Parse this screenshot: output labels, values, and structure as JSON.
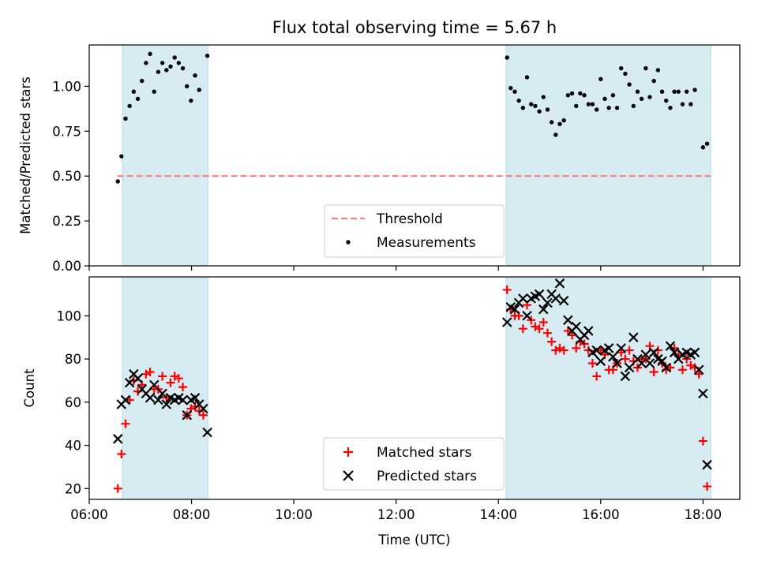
{
  "chart_data": [
    {
      "type": "scatter",
      "title": "Flux total observing time = 5.67 h",
      "xlabel": "",
      "ylabel": "Matched/Predicted stars",
      "ylim": [
        0,
        1.23
      ],
      "y_ticks": [
        "0.00",
        "0.25",
        "0.50",
        "0.75",
        "1.00"
      ],
      "y_tick_values": [
        0,
        0.25,
        0.5,
        0.75,
        1.0
      ],
      "x_unit": "hours UTC",
      "xlim": [
        6.0,
        18.72
      ],
      "shaded_intervals": [
        [
          6.65,
          8.32
        ],
        [
          14.15,
          18.15
        ]
      ],
      "shade_color": "#add8e6",
      "legend_position": "lower-center",
      "threshold": {
        "name": "Threshold",
        "value": 0.5,
        "x_range": [
          6.55,
          18.15
        ],
        "color": "#ff7777"
      },
      "series": [
        {
          "name": "Measurements",
          "marker": "dot",
          "color": "#000000",
          "points": [
            [
              6.56,
              0.47
            ],
            [
              6.63,
              0.61
            ],
            [
              6.71,
              0.82
            ],
            [
              6.79,
              0.89
            ],
            [
              6.87,
              0.97
            ],
            [
              6.95,
              0.93
            ],
            [
              7.03,
              1.03
            ],
            [
              7.11,
              1.13
            ],
            [
              7.19,
              1.18
            ],
            [
              7.27,
              0.97
            ],
            [
              7.35,
              1.08
            ],
            [
              7.43,
              1.13
            ],
            [
              7.51,
              1.09
            ],
            [
              7.59,
              1.11
            ],
            [
              7.67,
              1.16
            ],
            [
              7.75,
              1.13
            ],
            [
              7.83,
              1.1
            ],
            [
              7.91,
              1.0
            ],
            [
              7.99,
              0.92
            ],
            [
              8.07,
              1.06
            ],
            [
              8.15,
              0.98
            ],
            [
              8.31,
              1.17
            ],
            [
              14.17,
              1.16
            ],
            [
              14.24,
              0.99
            ],
            [
              14.32,
              0.97
            ],
            [
              14.4,
              0.92
            ],
            [
              14.48,
              0.88
            ],
            [
              14.56,
              1.05
            ],
            [
              14.64,
              0.9
            ],
            [
              14.72,
              0.89
            ],
            [
              14.8,
              0.86
            ],
            [
              14.88,
              0.94
            ],
            [
              14.96,
              0.87
            ],
            [
              15.04,
              0.8
            ],
            [
              15.12,
              0.73
            ],
            [
              15.2,
              0.79
            ],
            [
              15.28,
              0.81
            ],
            [
              15.36,
              0.95
            ],
            [
              15.44,
              0.96
            ],
            [
              15.52,
              0.89
            ],
            [
              15.6,
              0.96
            ],
            [
              15.68,
              0.95
            ],
            [
              15.76,
              0.9
            ],
            [
              15.84,
              0.9
            ],
            [
              15.92,
              0.87
            ],
            [
              16.0,
              1.04
            ],
            [
              16.08,
              0.93
            ],
            [
              16.16,
              0.88
            ],
            [
              16.24,
              0.95
            ],
            [
              16.32,
              0.88
            ],
            [
              16.4,
              1.1
            ],
            [
              16.48,
              1.07
            ],
            [
              16.56,
              1.01
            ],
            [
              16.64,
              0.89
            ],
            [
              16.72,
              0.97
            ],
            [
              16.8,
              0.93
            ],
            [
              16.88,
              1.1
            ],
            [
              16.96,
              0.94
            ],
            [
              17.04,
              1.03
            ],
            [
              17.12,
              1.09
            ],
            [
              17.2,
              0.97
            ],
            [
              17.28,
              0.92
            ],
            [
              17.36,
              0.88
            ],
            [
              17.44,
              0.97
            ],
            [
              17.52,
              0.97
            ],
            [
              17.6,
              0.9
            ],
            [
              17.68,
              0.97
            ],
            [
              17.76,
              0.9
            ],
            [
              17.84,
              0.98
            ],
            [
              18.0,
              0.66
            ],
            [
              18.08,
              0.68
            ]
          ]
        }
      ]
    },
    {
      "type": "scatter",
      "title": "",
      "xlabel": "Time (UTC)",
      "ylabel": "Count",
      "ylim": [
        15,
        118
      ],
      "y_ticks": [
        "20",
        "40",
        "60",
        "80",
        "100"
      ],
      "y_tick_values": [
        20,
        40,
        60,
        80,
        100
      ],
      "x_unit": "hours UTC",
      "xlim": [
        6.0,
        18.72
      ],
      "x_ticks": [
        "06:00",
        "08:00",
        "10:00",
        "12:00",
        "14:00",
        "16:00",
        "18:00"
      ],
      "x_tick_values": [
        6,
        8,
        10,
        12,
        14,
        16,
        18
      ],
      "shaded_intervals": [
        [
          6.65,
          8.32
        ],
        [
          14.15,
          18.15
        ]
      ],
      "shade_color": "#add8e6",
      "legend_position": "lower-center",
      "series": [
        {
          "name": "Matched stars",
          "marker": "plus",
          "color": "#ff0000",
          "points": [
            [
              6.56,
              20
            ],
            [
              6.63,
              36
            ],
            [
              6.71,
              50
            ],
            [
              6.79,
              61
            ],
            [
              6.87,
              70
            ],
            [
              6.95,
              65
            ],
            [
              7.03,
              68
            ],
            [
              7.11,
              73
            ],
            [
              7.19,
              74
            ],
            [
              7.27,
              66
            ],
            [
              7.35,
              66
            ],
            [
              7.43,
              72
            ],
            [
              7.51,
              62
            ],
            [
              7.59,
              69
            ],
            [
              7.67,
              72
            ],
            [
              7.75,
              71
            ],
            [
              7.83,
              67
            ],
            [
              7.91,
              54
            ],
            [
              7.99,
              57
            ],
            [
              8.07,
              58
            ],
            [
              8.15,
              56
            ],
            [
              8.23,
              54
            ],
            [
              14.17,
              112
            ],
            [
              14.24,
              103
            ],
            [
              14.32,
              100
            ],
            [
              14.4,
              100
            ],
            [
              14.48,
              94
            ],
            [
              14.56,
              105
            ],
            [
              14.64,
              98
            ],
            [
              14.72,
              95
            ],
            [
              14.8,
              94
            ],
            [
              14.88,
              97
            ],
            [
              14.96,
              92
            ],
            [
              15.04,
              88
            ],
            [
              15.12,
              84
            ],
            [
              15.2,
              85
            ],
            [
              15.28,
              84
            ],
            [
              15.36,
              93
            ],
            [
              15.44,
              91
            ],
            [
              15.52,
              85
            ],
            [
              15.6,
              88
            ],
            [
              15.68,
              87
            ],
            [
              15.76,
              84
            ],
            [
              15.84,
              78
            ],
            [
              15.92,
              72
            ],
            [
              16.0,
              84
            ],
            [
              16.08,
              82
            ],
            [
              16.16,
              75
            ],
            [
              16.24,
              75
            ],
            [
              16.32,
              78
            ],
            [
              16.4,
              83
            ],
            [
              16.48,
              80
            ],
            [
              16.56,
              84
            ],
            [
              16.64,
              79
            ],
            [
              16.72,
              76
            ],
            [
              16.8,
              80
            ],
            [
              16.88,
              80
            ],
            [
              16.96,
              86
            ],
            [
              17.04,
              74
            ],
            [
              17.12,
              84
            ],
            [
              17.2,
              78
            ],
            [
              17.28,
              75
            ],
            [
              17.36,
              76
            ],
            [
              17.44,
              85
            ],
            [
              17.52,
              82
            ],
            [
              17.6,
              75
            ],
            [
              17.68,
              80
            ],
            [
              17.76,
              77
            ],
            [
              17.84,
              76
            ],
            [
              17.92,
              73
            ],
            [
              18.0,
              42
            ],
            [
              18.08,
              21
            ]
          ]
        },
        {
          "name": "Predicted stars",
          "marker": "x",
          "color": "#000000",
          "points": [
            [
              6.56,
              43
            ],
            [
              6.63,
              59
            ],
            [
              6.71,
              61
            ],
            [
              6.79,
              69
            ],
            [
              6.87,
              73
            ],
            [
              6.95,
              71
            ],
            [
              7.03,
              66
            ],
            [
              7.11,
              64
            ],
            [
              7.19,
              62
            ],
            [
              7.27,
              68
            ],
            [
              7.35,
              61
            ],
            [
              7.43,
              64
            ],
            [
              7.51,
              59
            ],
            [
              7.59,
              62
            ],
            [
              7.67,
              61
            ],
            [
              7.75,
              62
            ],
            [
              7.83,
              61
            ],
            [
              7.91,
              54
            ],
            [
              7.99,
              61
            ],
            [
              8.07,
              62
            ],
            [
              8.15,
              59
            ],
            [
              8.23,
              57
            ],
            [
              8.31,
              46
            ],
            [
              14.17,
              97
            ],
            [
              14.24,
              104
            ],
            [
              14.32,
              103
            ],
            [
              14.4,
              106
            ],
            [
              14.48,
              108
            ],
            [
              14.56,
              100
            ],
            [
              14.64,
              108
            ],
            [
              14.72,
              109
            ],
            [
              14.8,
              110
            ],
            [
              14.88,
              103
            ],
            [
              14.96,
              106
            ],
            [
              15.04,
              110
            ],
            [
              15.12,
              108
            ],
            [
              15.2,
              115
            ],
            [
              15.28,
              107
            ],
            [
              15.36,
              98
            ],
            [
              15.44,
              93
            ],
            [
              15.52,
              95
            ],
            [
              15.6,
              89
            ],
            [
              15.68,
              91
            ],
            [
              15.76,
              93
            ],
            [
              15.84,
              83
            ],
            [
              15.92,
              84
            ],
            [
              16.0,
              79
            ],
            [
              16.08,
              84
            ],
            [
              16.16,
              85
            ],
            [
              16.24,
              81
            ],
            [
              16.32,
              78
            ],
            [
              16.4,
              85
            ],
            [
              16.48,
              72
            ],
            [
              16.56,
              76
            ],
            [
              16.64,
              90
            ],
            [
              16.72,
              80
            ],
            [
              16.8,
              78
            ],
            [
              16.88,
              82
            ],
            [
              16.96,
              78
            ],
            [
              17.04,
              83
            ],
            [
              17.12,
              80
            ],
            [
              17.2,
              79
            ],
            [
              17.28,
              76
            ],
            [
              17.36,
              86
            ],
            [
              17.44,
              83
            ],
            [
              17.52,
              80
            ],
            [
              17.6,
              82
            ],
            [
              17.68,
              83
            ],
            [
              17.76,
              82
            ],
            [
              17.84,
              83
            ],
            [
              17.92,
              75
            ],
            [
              18.0,
              64
            ],
            [
              18.08,
              31
            ]
          ]
        }
      ]
    }
  ]
}
